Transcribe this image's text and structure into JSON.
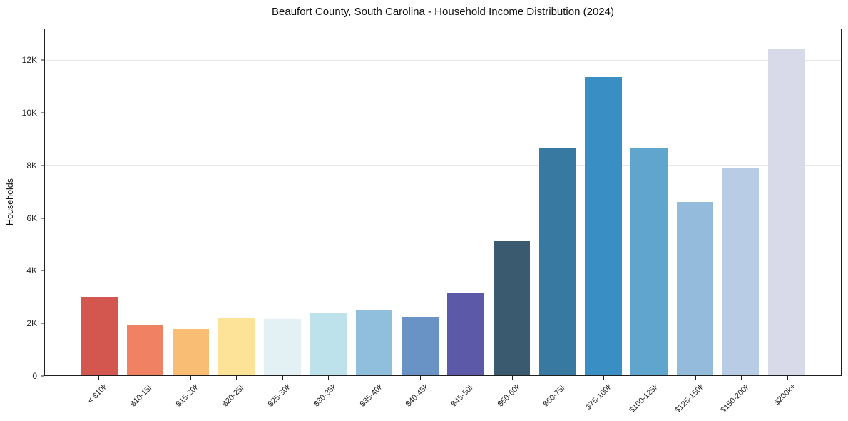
{
  "title": "Beaufort County, South Carolina - Household Income Distribution (2024)",
  "chart_data": {
    "type": "bar",
    "title": "Beaufort County, South Carolina - Household Income Distribution (2024)",
    "xlabel": "",
    "ylabel": "Households",
    "ylim": [
      0,
      13200
    ],
    "grid": "horizontal-only",
    "grid_color": "#e7e7e7",
    "axis_color": "#1f1f1f",
    "legend": "none",
    "categories": [
      "< $10k",
      "$10-15k",
      "$15-20k",
      "$20-25k",
      "$25-30k",
      "$30-35k",
      "$35-40k",
      "$40-45k",
      "$45-50k",
      "$50-60k",
      "$60-75k",
      "$75-100k",
      "$100-125k",
      "$125-150k",
      "$150-200k",
      "$200k+"
    ],
    "values": [
      3000,
      1900,
      1770,
      2190,
      2140,
      2400,
      2510,
      2240,
      3130,
      5130,
      8690,
      11370,
      8690,
      6620,
      7920,
      12450
    ],
    "bar_colors": [
      "#d4574f",
      "#f08263",
      "#f9bd74",
      "#fde398",
      "#e4f1f4",
      "#bde2ec",
      "#90bedd",
      "#6a93c5",
      "#5c59a9",
      "#3a5a70",
      "#3779a1",
      "#398ec3",
      "#5fa5cd",
      "#94bbdb",
      "#b9cce6",
      "#d9dae9"
    ],
    "yticks": [
      {
        "value": 0,
        "label": "0"
      },
      {
        "value": 2000,
        "label": "2K"
      },
      {
        "value": 4000,
        "label": "4K"
      },
      {
        "value": 6000,
        "label": "6K"
      },
      {
        "value": 8000,
        "label": "8K"
      },
      {
        "value": 10000,
        "label": "10K"
      },
      {
        "value": 12000,
        "label": "12K"
      }
    ]
  }
}
